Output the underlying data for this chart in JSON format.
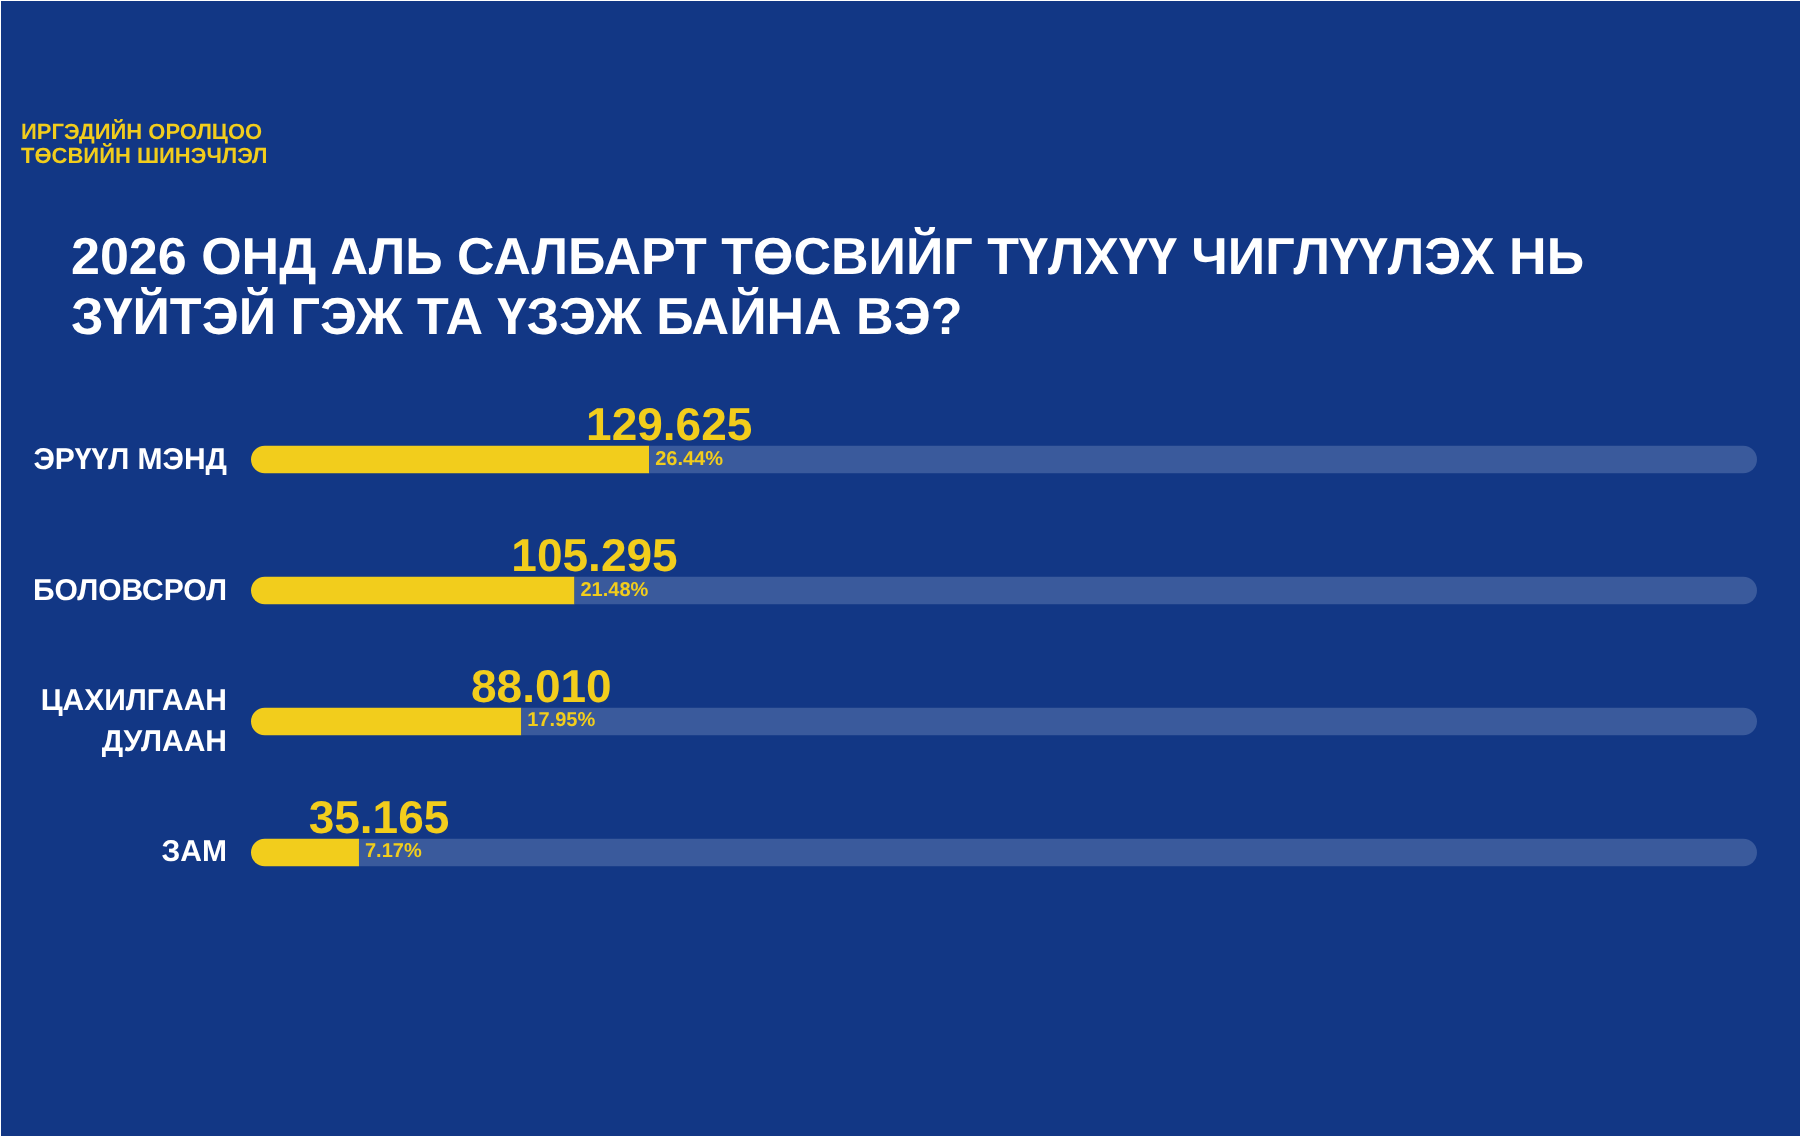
{
  "chart_data": {
    "type": "bar",
    "orientation": "horizontal",
    "title": "2026 ОНД АЛЬ САЛБАРТ ТӨСВИЙГ ТҮЛХҮҮ ЧИГЛҮҮЛЭХ НЬ\nЗҮЙТЭЙ ГЭЖ ТА ҮЗЭЖ БАЙНА ВЭ?",
    "subtitle": "ИРГЭДИЙН ОРОЛЦОО\nТӨСВИЙН ШИНЭЧЛЭЛ",
    "categories": [
      "ЭРҮҮЛ МЭНД",
      "БОЛОВСРОЛ",
      "ЦАХИЛГААН\nДУЛААН",
      "ЗАМ"
    ],
    "stacked": true,
    "series": [
      {
        "color": "#f2cd1c",
        "values": [
          26.44,
          21.48,
          17.95,
          7.17
        ],
        "value_labels": [
          "26.44%",
          "21.48%",
          "17.95%",
          "7.17%"
        ]
      },
      {
        "color": "#3a5a9c",
        "values": [
          73.56,
          78.52,
          82.05,
          92.83
        ]
      }
    ],
    "tick_labels": "y",
    "grid": false,
    "annotations": [
      {
        "text": "129.625",
        "x": 26.44,
        "y": "ЭРҮҮЛ МЭНД"
      },
      {
        "text": "105.295",
        "x": 21.48,
        "y": "БОЛОВСРОЛ"
      },
      {
        "text": "88.010",
        "x": 17.95,
        "y": "ЦАХИЛГААН\nДУЛААН"
      },
      {
        "text": "35.165",
        "x": 7.17,
        "y": "ЗАМ"
      }
    ]
  }
}
